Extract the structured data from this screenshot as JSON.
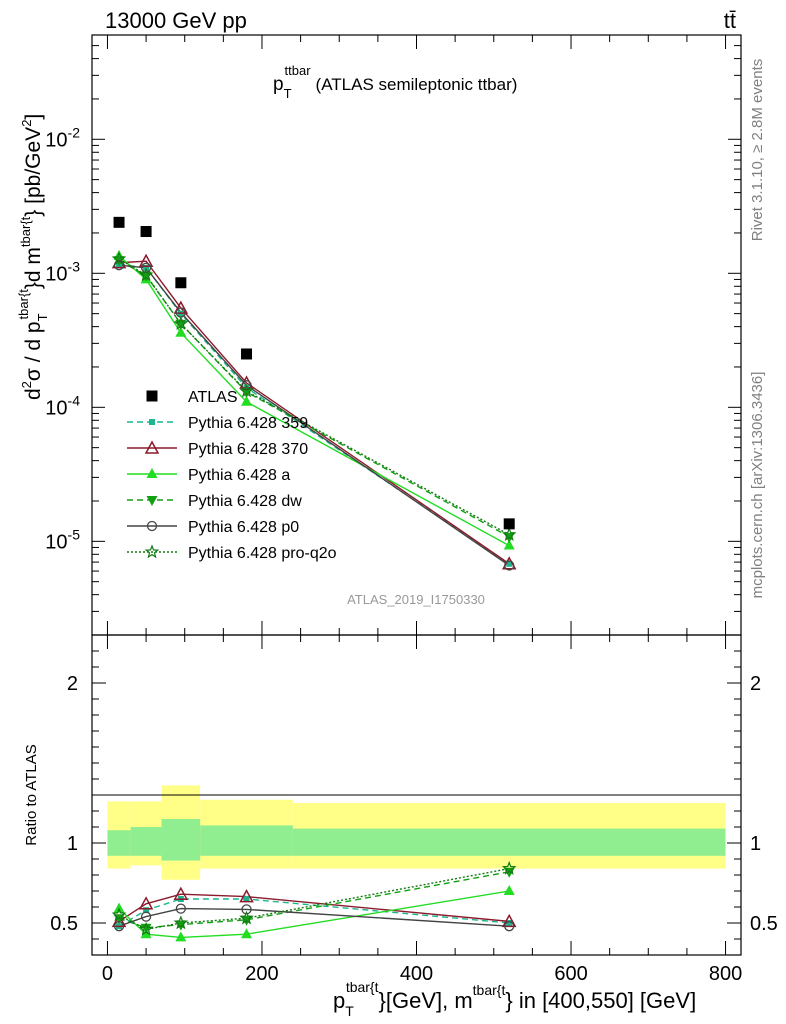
{
  "header": {
    "left": "13000 GeV pp",
    "right": "tt̄"
  },
  "side": {
    "upper": "Rivet 3.1.10, ≥ 2.8M events",
    "lower": "mcplots.cern.ch [arXiv:1306.3436]"
  },
  "analysis_id": "ATLAS_2019_I1750330",
  "colors": {
    "data": "#000000",
    "p359": "#1cb58f",
    "p370": "#8b1a2b",
    "pa": "#22dd22",
    "pdw": "#12a012",
    "pp0": "#444444",
    "pq2o": "#127a12",
    "band_inner": "#90ee90",
    "band_outer": "#ffff88"
  },
  "chart_data": [
    {
      "type": "line",
      "panel": "main",
      "title": {
        "p": "p",
        "sub": "T",
        "sup": "ttbar",
        "rest": "(ATLAS semileptonic ttbar)"
      },
      "ylabel": {
        "a": "d",
        "b": "σ / d p",
        "c": "d m",
        "d": "} [pb/GeV",
        "e": "]",
        "s2": "2",
        "sub_t": "T",
        "sup1": "tbar{t",
        "sup2": "}",
        "sup3": "tbar{t",
        "g2": "2"
      },
      "yscale": "log",
      "ylim": [
        2e-06,
        0.06
      ],
      "xlim": [
        -20,
        820
      ],
      "yticks": [
        {
          "m": "10",
          "e": "-2",
          "v": 0.01
        },
        {
          "m": "10",
          "e": "-3",
          "v": 0.001
        },
        {
          "m": "10",
          "e": "-4",
          "v": 0.0001
        },
        {
          "m": "10",
          "e": "-5",
          "v": 1e-05
        }
      ],
      "data": {
        "name": "ATLAS",
        "x": [
          15,
          50,
          95,
          180,
          520
        ],
        "y": [
          0.0024,
          0.00205,
          0.00085,
          0.00025,
          1.35e-05
        ]
      },
      "series": [
        {
          "key": "p359",
          "name": "Pythia 6.428 359",
          "marker": "square",
          "dash": "6,4",
          "x": [
            15,
            50,
            95,
            180,
            520
          ],
          "y": [
            0.00117,
            0.0011,
            0.0005,
            0.00014,
            6.8e-06
          ]
        },
        {
          "key": "p370",
          "name": "Pythia 6.428 370",
          "marker": "triangle-open",
          "dash": "",
          "x": [
            15,
            50,
            95,
            180,
            520
          ],
          "y": [
            0.0012,
            0.00123,
            0.00055,
            0.000152,
            6.8e-06
          ]
        },
        {
          "key": "pa",
          "name": "Pythia 6.428 a",
          "marker": "triangle",
          "dash": "",
          "x": [
            15,
            50,
            95,
            180,
            520
          ],
          "y": [
            0.00135,
            0.0009,
            0.00036,
            0.00011,
            9.3e-06
          ]
        },
        {
          "key": "pdw",
          "name": "Pythia 6.428 dw",
          "marker": "triangle-down",
          "dash": "6,4",
          "x": [
            15,
            50,
            95,
            180,
            520
          ],
          "y": [
            0.00125,
            0.00096,
            0.00042,
            0.00013,
            1.08e-05
          ]
        },
        {
          "key": "pp0",
          "name": "Pythia 6.428 p0",
          "marker": "circle-open",
          "dash": "",
          "x": [
            15,
            50,
            95,
            180,
            520
          ],
          "y": [
            0.00115,
            0.0011,
            0.00051,
            0.000146,
            6.6e-06
          ]
        },
        {
          "key": "pq2o",
          "name": "Pythia 6.428 pro-q2o",
          "marker": "star",
          "dash": "2,2",
          "x": [
            15,
            50,
            95,
            180,
            520
          ],
          "y": [
            0.00128,
            0.00097,
            0.00042,
            0.000132,
            1.12e-05
          ]
        }
      ]
    },
    {
      "type": "line",
      "panel": "ratio",
      "ylabel": "Ratio to ATLAS",
      "ylim": [
        0.3,
        2.3
      ],
      "yticks": [
        0.5,
        1,
        2
      ],
      "xticks": [
        0,
        200,
        400,
        600,
        800
      ],
      "xlabel": {
        "p": "p",
        "sub": "T",
        "sup1": "tbar{t",
        "mid": "}[GeV], m",
        "sup2": "tbar{t",
        "end": "} in [400,550] [GeV]"
      },
      "bands": [
        {
          "x0": 0,
          "x1": 30,
          "inner": [
            0.92,
            1.08
          ],
          "outer": [
            0.84,
            1.26
          ]
        },
        {
          "x0": 30,
          "x1": 70,
          "inner": [
            0.92,
            1.1
          ],
          "outer": [
            0.86,
            1.26
          ]
        },
        {
          "x0": 70,
          "x1": 120,
          "inner": [
            0.89,
            1.15
          ],
          "outer": [
            0.77,
            1.36
          ]
        },
        {
          "x0": 120,
          "x1": 240,
          "inner": [
            0.92,
            1.11
          ],
          "outer": [
            0.84,
            1.27
          ]
        },
        {
          "x0": 240,
          "x1": 800,
          "inner": [
            0.92,
            1.09
          ],
          "outer": [
            0.84,
            1.25
          ]
        }
      ],
      "series": [
        {
          "key": "p359",
          "x": [
            15,
            50,
            95,
            180,
            520
          ],
          "y": [
            0.48,
            0.58,
            0.65,
            0.65,
            0.5
          ]
        },
        {
          "key": "p370",
          "x": [
            15,
            50,
            95,
            180,
            520
          ],
          "y": [
            0.51,
            0.62,
            0.68,
            0.665,
            0.51
          ]
        },
        {
          "key": "pa",
          "x": [
            15,
            50,
            95,
            180,
            520
          ],
          "y": [
            0.59,
            0.43,
            0.41,
            0.43,
            0.7
          ]
        },
        {
          "key": "pdw",
          "x": [
            15,
            50,
            95,
            180,
            520
          ],
          "y": [
            0.53,
            0.47,
            0.49,
            0.52,
            0.82
          ]
        },
        {
          "key": "pp0",
          "x": [
            15,
            50,
            95,
            180,
            520
          ],
          "y": [
            0.48,
            0.54,
            0.59,
            0.585,
            0.48
          ]
        },
        {
          "key": "pq2o",
          "x": [
            15,
            50,
            95,
            180,
            520
          ],
          "y": [
            0.55,
            0.46,
            0.5,
            0.53,
            0.84
          ]
        }
      ]
    }
  ]
}
